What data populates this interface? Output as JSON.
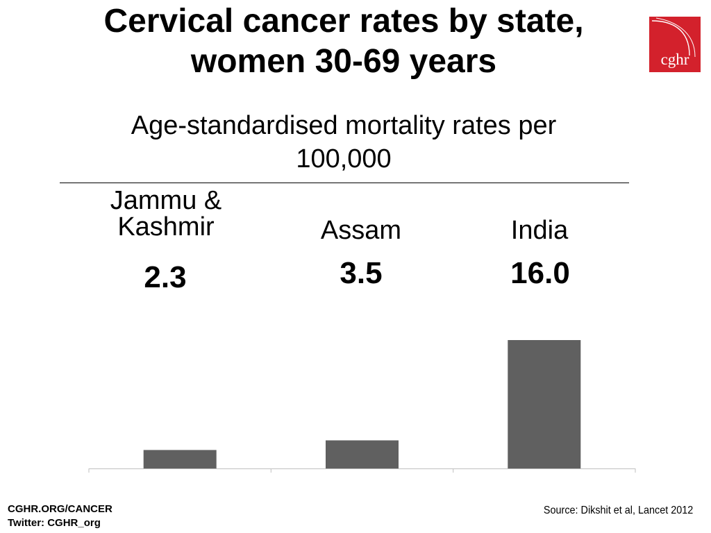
{
  "slide": {
    "title": "Cervical cancer rates by state,\nwomen 30-69 years",
    "subtitle": "Age-standardised mortality rates per\n100,000",
    "footer_line1": "CGHR.ORG/CANCER",
    "footer_line2": "Twitter: CGHR_org",
    "source": "Source: Dikshit et al, Lancet 2012",
    "logo_text": "cghr",
    "colors": {
      "bar": "#606060",
      "logo": "#d3212c",
      "axis": "#bfbfbf"
    }
  },
  "chart_data": {
    "type": "bar",
    "categories": [
      "Jammu &\nKashmir",
      "Assam",
      "India"
    ],
    "values": [
      2.3,
      3.5,
      16.0
    ],
    "value_labels": [
      "2.3",
      "3.5",
      "16.0"
    ],
    "title": "Cervical cancer rates by state, women 30-69 years",
    "subtitle": "Age-standardised mortality rates per 100,000",
    "ylim": [
      0,
      16.0
    ],
    "grid": false,
    "legend": "none"
  }
}
